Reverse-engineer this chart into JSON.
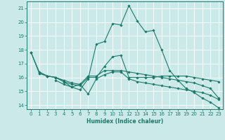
{
  "xlabel": "Humidex (Indice chaleur)",
  "bg_color": "#cce9e9",
  "grid_color": "#ffffff",
  "line_color": "#1a7a6a",
  "xlim": [
    -0.5,
    23.5
  ],
  "ylim": [
    13.7,
    21.5
  ],
  "yticks": [
    14,
    15,
    16,
    17,
    18,
    19,
    20,
    21
  ],
  "xticks": [
    0,
    1,
    2,
    3,
    4,
    5,
    6,
    7,
    8,
    9,
    10,
    11,
    12,
    13,
    14,
    15,
    16,
    17,
    18,
    19,
    20,
    21,
    22,
    23
  ],
  "lines": [
    {
      "x": [
        0,
        1,
        2,
        3,
        4,
        5,
        6,
        7,
        8,
        9,
        10,
        11,
        12,
        13,
        14,
        15,
        16,
        17,
        18,
        19,
        20,
        21,
        22,
        23
      ],
      "y": [
        17.8,
        16.3,
        16.1,
        16.0,
        15.7,
        15.3,
        15.1,
        15.9,
        18.4,
        18.6,
        19.9,
        19.8,
        21.2,
        20.1,
        19.3,
        19.4,
        18.0,
        16.5,
        15.8,
        15.2,
        14.9,
        14.5,
        14.2,
        13.8
      ]
    },
    {
      "x": [
        1,
        2,
        3,
        4,
        5,
        6,
        7,
        8,
        9,
        10,
        11,
        12,
        13,
        14,
        15,
        16,
        17,
        18,
        19,
        20,
        21,
        22,
        23
      ],
      "y": [
        16.3,
        16.1,
        16.0,
        15.7,
        15.5,
        15.4,
        16.0,
        16.0,
        16.8,
        17.5,
        17.6,
        16.0,
        16.0,
        16.0,
        16.0,
        16.1,
        16.1,
        16.1,
        16.1,
        16.0,
        15.9,
        15.8,
        15.7
      ]
    },
    {
      "x": [
        3,
        4,
        5,
        6,
        7,
        8,
        9,
        10,
        11,
        12,
        13,
        14,
        15,
        16,
        17,
        18,
        19,
        20,
        21,
        22,
        23
      ],
      "y": [
        15.8,
        15.5,
        15.3,
        15.5,
        14.8,
        15.9,
        16.2,
        16.4,
        16.4,
        15.9,
        15.7,
        15.6,
        15.5,
        15.4,
        15.3,
        15.2,
        15.1,
        15.0,
        14.9,
        14.7,
        14.4
      ]
    },
    {
      "x": [
        0,
        1,
        2,
        3,
        4,
        5,
        6,
        7,
        8,
        9,
        10,
        11,
        12,
        13,
        14,
        15,
        16,
        17,
        18,
        19,
        20,
        21,
        22,
        23
      ],
      "y": [
        17.8,
        16.4,
        16.1,
        16.0,
        15.8,
        15.6,
        15.5,
        16.1,
        16.1,
        16.5,
        16.5,
        16.5,
        16.4,
        16.3,
        16.2,
        16.1,
        16.0,
        15.9,
        15.8,
        15.7,
        15.6,
        15.4,
        15.2,
        14.5
      ]
    }
  ]
}
